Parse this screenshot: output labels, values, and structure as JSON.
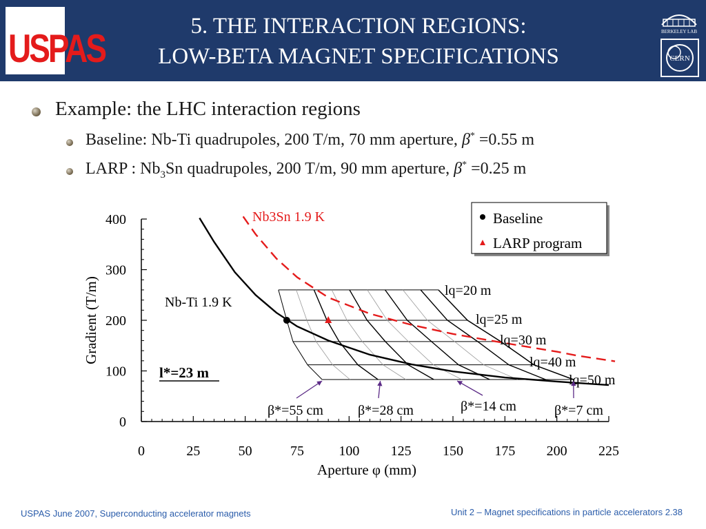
{
  "header": {
    "title_line1": "5. THE INTERACTION REGIONS:",
    "title_line2": "LOW-BETA MAGNET SPECIFICATIONS",
    "logo_left_text": "USPAS",
    "logo_right_top_text": "BERKELEY LAB",
    "logo_right_bottom_text": "CERN"
  },
  "bullets": {
    "main": "Example: the LHC interaction regions",
    "sub1": {
      "pre": "Baseline: Nb-Ti quadrupoles, 200 T/m, 70 mm aperture, ",
      "beta": "β",
      "star": "*",
      "post": " =0.55 m"
    },
    "sub2": {
      "pre": "LARP : Nb",
      "sub": "3",
      "mid": "Sn quadrupoles, 200 T/m, 90 mm aperture, ",
      "beta": "β",
      "star": "*",
      "post": " =0.25 m"
    }
  },
  "chart_data": {
    "type": "line",
    "xlabel": "Aperture φ (mm)",
    "ylabel": "Gradient (T/m)",
    "xlim": [
      0,
      225
    ],
    "ylim": [
      0,
      400
    ],
    "xticks": [
      "0",
      "25",
      "50",
      "75",
      "100",
      "125",
      "150",
      "175",
      "200",
      "225"
    ],
    "yticks": [
      "0",
      "100",
      "200",
      "300",
      "400"
    ],
    "legend": {
      "placement": "top-right",
      "entries": [
        {
          "label": "Baseline",
          "marker": "circle",
          "color": "#000000"
        },
        {
          "label": "LARP program",
          "marker": "triangle",
          "color": "#e41b1b"
        }
      ]
    },
    "series": [
      {
        "name": "Nb-Ti 1.9 K",
        "color": "#000000",
        "style": "solid",
        "x": [
          28,
          35,
          45,
          55,
          65,
          75,
          90,
          110,
          130,
          150,
          175,
          200,
          225
        ],
        "y": [
          402,
          355,
          295,
          250,
          215,
          188,
          160,
          132,
          113,
          99,
          87,
          79,
          72
        ]
      },
      {
        "name": "Nb3Sn 1.9 K",
        "color": "#e41b1b",
        "style": "dashed",
        "x": [
          49,
          55,
          65,
          75,
          90,
          110,
          130,
          150,
          175,
          200,
          210,
          228
        ],
        "y": [
          405,
          370,
          322,
          285,
          245,
          213,
          191,
          173,
          155,
          138,
          130,
          119
        ]
      }
    ],
    "gradient_levels": [
      {
        "label": "lq=20 m",
        "y": 260,
        "x_from": 66,
        "x_to": 143
      },
      {
        "label": "lq=25 m",
        "y": 200,
        "x_from": 70,
        "x_to": 157
      },
      {
        "label": "lq=30 m",
        "y": 158,
        "x_from": 73,
        "x_to": 173
      },
      {
        "label": "lq=40 m",
        "y": 112,
        "x_from": 80,
        "x_to": 189
      },
      {
        "label": "lq=50 m",
        "y": 83,
        "x_from": 87,
        "x_to": 208
      }
    ],
    "beta_labels": [
      {
        "label": "β*=55 cm",
        "arrow_to": [
          87,
          83
        ]
      },
      {
        "label": "β*=28 cm",
        "arrow_to": [
          115,
          83
        ]
      },
      {
        "label": "β*=14 cm",
        "arrow_to": [
          152,
          83
        ]
      },
      {
        "label": "β*=7 cm",
        "arrow_to": [
          208,
          83
        ]
      }
    ],
    "points": [
      {
        "series": "Baseline",
        "x": 70,
        "y": 200
      },
      {
        "series": "LARP program",
        "x": 90,
        "y": 200
      }
    ],
    "annotations": [
      "l*=23 m"
    ]
  },
  "footer": {
    "left": "USPAS June  2007,  Superconducting accelerator magnets",
    "right": "Unit 2 – Magnet specifications in particle accelerators 2.38"
  }
}
